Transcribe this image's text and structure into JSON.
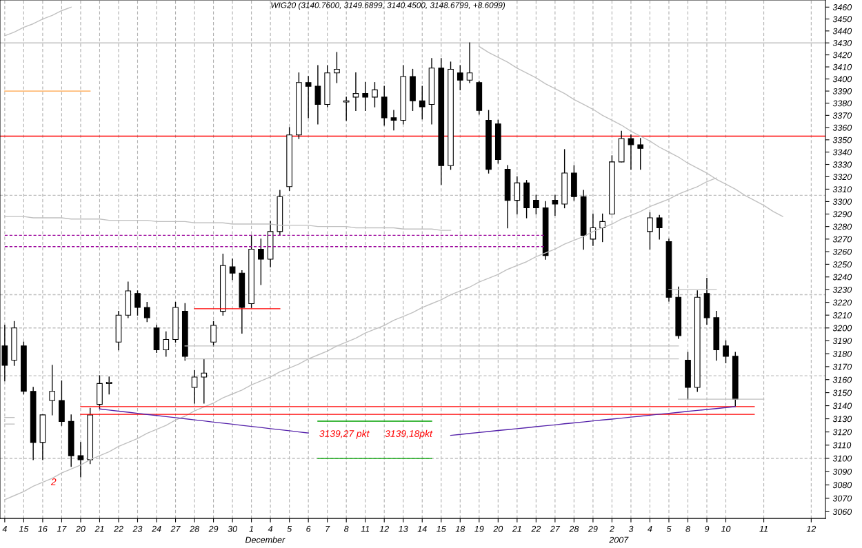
{
  "chart_data": {
    "type": "candlestick",
    "title": "WIG20 (3140.7600, 3149.6899, 3140.4500, 3148.6799, +8.6099)",
    "categories": [
      "4",
      null,
      "15",
      null,
      "16",
      null,
      "17",
      null,
      "20",
      null,
      "21",
      null,
      "22",
      null,
      "23",
      null,
      "24",
      null,
      "27",
      null,
      "28",
      null,
      "29",
      null,
      "30",
      null,
      "1",
      null,
      "4",
      null,
      "5",
      null,
      "6",
      null,
      "7",
      null,
      "8",
      null,
      "11",
      null,
      "12",
      null,
      "13",
      null,
      "14",
      null,
      "15",
      null,
      "18",
      null,
      "19",
      null,
      "20",
      null,
      "21",
      null,
      "22",
      null,
      "27",
      null,
      "28",
      null,
      "29",
      null,
      "2",
      null,
      "3",
      null,
      "4",
      null,
      "5",
      null,
      "8",
      null,
      "9",
      null,
      "10",
      null,
      null,
      null,
      "11",
      null,
      null,
      null,
      null,
      "12",
      null
    ],
    "ohlc": [
      [
        3186,
        3202,
        3159,
        3171
      ],
      [
        3175,
        3205,
        3171,
        3200
      ],
      [
        3186,
        3189,
        3149,
        3151
      ],
      [
        3151,
        3154,
        3099,
        3112
      ],
      [
        3112,
        3133,
        3099,
        3133
      ],
      [
        3144,
        3171,
        3133,
        3151
      ],
      [
        3144,
        3159,
        3125,
        3128
      ],
      [
        3128,
        3133,
        3094,
        3102
      ],
      [
        3102,
        3112,
        3086,
        3099
      ],
      [
        3099,
        3138,
        3096,
        3133
      ],
      [
        3141,
        3163,
        3138,
        3157
      ],
      [
        3157,
        3162,
        3149,
        3158
      ],
      [
        3189,
        3213,
        3183,
        3210
      ],
      [
        3210,
        3236,
        3208,
        3229
      ],
      [
        3227,
        3229,
        3210,
        3216
      ],
      [
        3216,
        3220,
        3205,
        3208
      ],
      [
        3200,
        3202,
        3181,
        3183
      ],
      [
        3183,
        3197,
        3178,
        3191
      ],
      [
        3191,
        3220,
        3189,
        3216
      ],
      [
        3213,
        3219,
        3175,
        3178
      ],
      [
        3154,
        3167,
        3142,
        3162
      ],
      [
        3162,
        3176,
        3142,
        3165
      ],
      [
        3189,
        3205,
        3186,
        3202
      ],
      [
        3213,
        3258,
        3210,
        3249
      ],
      [
        3248,
        3254,
        3238,
        3243
      ],
      [
        3243,
        3245,
        3196,
        3216
      ],
      [
        3219,
        3273,
        3216,
        3262
      ],
      [
        3262,
        3270,
        3234,
        3254
      ],
      [
        3254,
        3284,
        3248,
        3276
      ],
      [
        3276,
        3309,
        3273,
        3304
      ],
      [
        3312,
        3360,
        3309,
        3354
      ],
      [
        3354,
        3405,
        3351,
        3397
      ],
      [
        3397,
        3402,
        3368,
        3394
      ],
      [
        3394,
        3411,
        3363,
        3379
      ],
      [
        3379,
        3411,
        3377,
        3405
      ],
      [
        3405,
        3422,
        3397,
        3408
      ],
      [
        3381,
        3385,
        3366,
        3382
      ],
      [
        3385,
        3405,
        3374,
        3388
      ],
      [
        3388,
        3397,
        3374,
        3385
      ],
      [
        3385,
        3397,
        3377,
        3391
      ],
      [
        3385,
        3394,
        3362,
        3368
      ],
      [
        3368,
        3374,
        3358,
        3366
      ],
      [
        3366,
        3411,
        3363,
        3402
      ],
      [
        3402,
        3408,
        3374,
        3382
      ],
      [
        3382,
        3394,
        3367,
        3377
      ],
      [
        3379,
        3417,
        3363,
        3409
      ],
      [
        3409,
        3417,
        3314,
        3329
      ],
      [
        3329,
        3414,
        3326,
        3408
      ],
      [
        3405,
        3411,
        3391,
        3399
      ],
      [
        3399,
        3430,
        3397,
        3405
      ],
      [
        3397,
        3398,
        3371,
        3374
      ],
      [
        3366,
        3374,
        3323,
        3326
      ],
      [
        3363,
        3366,
        3331,
        3334
      ],
      [
        3326,
        3329,
        3279,
        3301
      ],
      [
        3301,
        3320,
        3290,
        3315
      ],
      [
        3315,
        3317,
        3287,
        3295
      ],
      [
        3301,
        3305,
        3290,
        3295
      ],
      [
        3295,
        3300,
        3254,
        3257
      ],
      [
        3301,
        3305,
        3289,
        3298
      ],
      [
        3298,
        3342,
        3295,
        3323
      ],
      [
        3323,
        3329,
        3301,
        3304
      ],
      [
        3304,
        3309,
        3262,
        3273
      ],
      [
        3270,
        3290,
        3265,
        3279
      ],
      [
        3279,
        3290,
        3268,
        3284
      ],
      [
        3290,
        3337,
        3290,
        3332
      ],
      [
        3332,
        3357,
        3332,
        3351
      ],
      [
        3351,
        3354,
        3326,
        3346
      ],
      [
        3346,
        3351,
        3326,
        3343
      ],
      [
        3276,
        3291,
        3262,
        3287
      ],
      [
        3287,
        3289,
        3270,
        3279
      ],
      [
        3268,
        3270,
        3221,
        3224
      ],
      [
        3224,
        3232,
        3192,
        3194
      ],
      [
        3175,
        3181,
        3145,
        3154
      ],
      [
        3154,
        3229,
        3151,
        3224
      ],
      [
        3227,
        3239,
        3203,
        3208
      ],
      [
        3208,
        3213,
        3175,
        3183
      ],
      [
        3186,
        3190,
        3173,
        3178
      ],
      [
        3178,
        3181,
        3140,
        3145
      ],
      null,
      null,
      null,
      null,
      null,
      null,
      null,
      null,
      null
    ],
    "series": [
      {
        "type": "line",
        "color": "#c0c0c0",
        "values": [
          3436,
          3439,
          3443,
          3446,
          3450,
          3453,
          3457,
          3460,
          null,
          null,
          null,
          null,
          null,
          null,
          null,
          null,
          null,
          null,
          null,
          null,
          null,
          null,
          null,
          null,
          null,
          null,
          null,
          null,
          null,
          null,
          null,
          null,
          null,
          null,
          null,
          null,
          null,
          null,
          null,
          null,
          null,
          null,
          null,
          null,
          null,
          null,
          null,
          null,
          null,
          null,
          null,
          null,
          null,
          null,
          null,
          null,
          null,
          null,
          null,
          null,
          null,
          null,
          null,
          null,
          null,
          null,
          null,
          null,
          null,
          null,
          null,
          null,
          null,
          null,
          null,
          null,
          null,
          null,
          null,
          null,
          null,
          null,
          null,
          null,
          null,
          null,
          null
        ]
      },
      {
        "type": "line",
        "color": "#ffa040",
        "values": [
          3390,
          3390,
          3390,
          3390,
          3390,
          3390,
          3390,
          3390,
          3390,
          3390,
          null,
          null,
          null,
          null,
          null,
          null,
          null,
          null,
          null,
          null,
          null,
          null,
          null,
          null,
          null,
          null,
          null,
          null,
          null,
          null,
          null,
          null,
          null,
          null,
          null,
          null,
          null,
          null,
          null,
          null,
          null,
          null,
          null,
          null,
          null,
          null,
          null,
          null,
          null,
          null,
          null,
          null,
          null,
          null,
          null,
          null,
          null,
          null,
          null,
          null,
          null,
          null,
          null,
          null,
          null,
          null,
          null,
          null,
          null,
          null,
          null,
          null,
          null,
          null,
          null,
          null,
          null,
          null,
          null,
          null,
          null,
          null,
          null,
          null,
          null,
          null,
          null
        ]
      },
      {
        "type": "line",
        "color": "#c0c0c0",
        "values": [
          3288,
          3288,
          3288,
          3287,
          3287,
          3287,
          3287,
          3286,
          3286,
          3286,
          3286,
          3285,
          3285,
          3285,
          3285,
          3285,
          3284,
          3284,
          3284,
          3284,
          3283,
          3283,
          3283,
          3283,
          3282,
          3282,
          3282,
          3282,
          3282,
          3281,
          3281,
          3281,
          3281,
          3280,
          3280,
          3280,
          3280,
          3279,
          3279,
          3279,
          3279,
          3279,
          3278,
          3278,
          3278,
          3278,
          3277,
          3277,
          null,
          null,
          null,
          null,
          null,
          null,
          null,
          null,
          null,
          null,
          null,
          null,
          null,
          null,
          null,
          null,
          null,
          null,
          null,
          null,
          null,
          null,
          null,
          null,
          null,
          null,
          null,
          null,
          null,
          null,
          null,
          null,
          null,
          null,
          null,
          null,
          null,
          null,
          null
        ]
      },
      {
        "type": "line",
        "color": "#990099",
        "line_style": "dashed",
        "values": [
          3273,
          3273,
          3273,
          3273,
          3273,
          3273,
          3273,
          3273,
          3273,
          3273,
          3273,
          3273,
          3273,
          3273,
          3273,
          3273,
          3273,
          3273,
          3273,
          3273,
          3273,
          3273,
          3273,
          3273,
          3273,
          3273,
          3273,
          3273,
          3273,
          3273,
          3273,
          3273,
          3273,
          3273,
          3273,
          3273,
          3273,
          3273,
          3273,
          3273,
          3273,
          3273,
          3273,
          3273,
          3273,
          3273,
          3273,
          3273,
          3273,
          3273,
          3273,
          3273,
          3273,
          3273,
          3273,
          3273,
          3273,
          3273,
          null,
          null,
          null,
          null,
          null,
          null,
          null,
          null,
          null,
          null,
          null,
          null,
          null,
          null,
          null,
          null,
          null,
          null,
          null,
          null,
          null,
          null,
          null,
          null,
          null,
          null,
          null,
          null,
          null
        ]
      },
      {
        "type": "line",
        "color": "#990099",
        "line_style": "dashed",
        "values": [
          3264,
          3264,
          3264,
          3264,
          3264,
          3264,
          3264,
          3264,
          3264,
          3264,
          3264,
          3264,
          3264,
          3264,
          3264,
          3264,
          3264,
          3264,
          3264,
          3264,
          3264,
          3264,
          3264,
          3264,
          3264,
          3264,
          3264,
          3264,
          3264,
          3264,
          3264,
          3264,
          3264,
          3264,
          3264,
          3264,
          3264,
          3264,
          3264,
          3264,
          3264,
          3264,
          3264,
          3264,
          3264,
          3264,
          3264,
          3264,
          3264,
          3264,
          3264,
          3264,
          3264,
          3264,
          3264,
          3264,
          3264,
          3264,
          null,
          null,
          null,
          null,
          null,
          null,
          null,
          null,
          null,
          null,
          null,
          null,
          null,
          null,
          null,
          null,
          null,
          null,
          null,
          null,
          null,
          null,
          null,
          null,
          null,
          null,
          null,
          null,
          null
        ]
      },
      {
        "type": "line",
        "color": "#c0c0c0",
        "values": [
          null,
          null,
          null,
          null,
          null,
          null,
          null,
          null,
          null,
          null,
          null,
          null,
          null,
          null,
          null,
          null,
          null,
          null,
          null,
          3186,
          3186,
          3186,
          3186,
          3186,
          3186,
          3186,
          3186,
          3186,
          3186,
          3186,
          3186,
          3186,
          3186,
          3186,
          3186,
          3186,
          3186,
          3186,
          3186,
          3186,
          3186,
          3186,
          3186,
          3186,
          3186,
          3186,
          3186,
          3186,
          3186,
          3186,
          3186,
          3186,
          3186,
          3186,
          3186,
          3186,
          3186,
          3186,
          3186,
          3186,
          3186,
          3186,
          3186,
          3186,
          3186,
          3186,
          3186,
          3186,
          3186,
          3186,
          3186,
          3186,
          null,
          null,
          null,
          null,
          null,
          null,
          null,
          null,
          null,
          null,
          null,
          null,
          null,
          null,
          null
        ]
      },
      {
        "type": "line",
        "color": "#c0c0c0",
        "values": [
          null,
          null,
          null,
          null,
          null,
          null,
          null,
          null,
          null,
          null,
          null,
          null,
          null,
          null,
          null,
          null,
          null,
          null,
          null,
          3176,
          3176,
          3176,
          3176,
          3176,
          3176,
          3176,
          3176,
          3176,
          3176,
          3176,
          3176,
          3176,
          3176,
          3176,
          3176,
          3176,
          3176,
          3176,
          3176,
          3176,
          3176,
          3176,
          3176,
          3176,
          3176,
          3176,
          3176,
          3176,
          3176,
          3176,
          3176,
          3176,
          3176,
          3176,
          3176,
          3176,
          3176,
          3176,
          3176,
          3176,
          3176,
          3176,
          3176,
          3176,
          3176,
          3176,
          3176,
          3176,
          3176,
          3176,
          3176,
          3176,
          null,
          null,
          null,
          null,
          null,
          null,
          null,
          null,
          null,
          null,
          null,
          null,
          null,
          null,
          null
        ]
      },
      {
        "type": "line",
        "color": "#c0c0c0",
        "values": [
          3131,
          3131,
          null,
          null,
          null,
          null,
          null,
          null,
          null,
          null,
          null,
          null,
          null,
          null,
          null,
          null,
          null,
          null,
          null,
          null,
          null,
          null,
          null,
          null,
          null,
          null,
          null,
          null,
          null,
          null,
          null,
          null,
          null,
          null,
          null,
          null,
          null,
          null,
          null,
          null,
          null,
          null,
          null,
          null,
          null,
          null,
          null,
          null,
          null,
          null,
          null,
          null,
          null,
          null,
          null,
          null,
          null,
          null,
          null,
          null,
          null,
          null,
          null,
          null,
          null,
          null,
          null,
          null,
          null,
          null,
          null,
          null,
          null,
          null,
          null,
          null,
          null,
          null,
          null,
          null,
          null,
          null,
          null,
          null,
          null,
          null,
          null
        ]
      },
      {
        "type": "line",
        "color": "#c0c0c0",
        "values": [
          3126,
          3126,
          null,
          null,
          null,
          null,
          null,
          null,
          null,
          null,
          null,
          null,
          null,
          null,
          null,
          null,
          null,
          null,
          null,
          null,
          null,
          null,
          null,
          null,
          null,
          null,
          null,
          null,
          null,
          null,
          null,
          null,
          null,
          null,
          null,
          null,
          null,
          null,
          null,
          null,
          null,
          null,
          null,
          null,
          null,
          null,
          null,
          null,
          null,
          null,
          null,
          null,
          null,
          null,
          null,
          null,
          null,
          null,
          null,
          null,
          null,
          null,
          null,
          null,
          null,
          null,
          null,
          null,
          null,
          null,
          null,
          null,
          null,
          null,
          null,
          null,
          null,
          null,
          null,
          null,
          null,
          null,
          null,
          null,
          null,
          null,
          null
        ]
      },
      {
        "type": "line",
        "color": "#ff0000",
        "values": [
          null,
          null,
          null,
          null,
          null,
          null,
          null,
          null,
          null,
          null,
          null,
          null,
          null,
          null,
          null,
          null,
          null,
          null,
          null,
          null,
          3215,
          3215,
          3215,
          3215,
          3215,
          3215,
          3215,
          3215,
          3215,
          3215,
          null,
          null,
          null,
          null,
          null,
          null,
          null,
          null,
          null,
          null,
          null,
          null,
          null,
          null,
          null,
          null,
          null,
          null,
          null,
          null,
          null,
          null,
          null,
          null,
          null,
          null,
          null,
          null,
          null,
          null,
          null,
          null,
          null,
          null,
          null,
          null,
          null,
          null,
          null,
          null,
          null,
          null,
          null,
          null,
          null,
          null,
          null,
          null,
          null,
          null,
          null,
          null,
          null,
          null,
          null,
          null,
          null
        ]
      },
      {
        "type": "line",
        "color": "#c0c0c0",
        "values": [
          null,
          null,
          null,
          null,
          null,
          null,
          null,
          null,
          null,
          null,
          null,
          null,
          null,
          null,
          null,
          null,
          null,
          null,
          null,
          null,
          null,
          null,
          null,
          null,
          null,
          null,
          null,
          null,
          null,
          null,
          null,
          null,
          null,
          null,
          null,
          null,
          null,
          null,
          null,
          null,
          null,
          null,
          null,
          null,
          null,
          null,
          null,
          null,
          null,
          null,
          null,
          null,
          null,
          null,
          null,
          null,
          null,
          null,
          null,
          null,
          null,
          null,
          null,
          null,
          null,
          null,
          null,
          null,
          null,
          null,
          3230,
          3230,
          3230,
          3230,
          3230,
          3230,
          null,
          null,
          null,
          null,
          null,
          null,
          null,
          null,
          null,
          null,
          null
        ]
      },
      {
        "type": "line",
        "color": "#c0c0c0",
        "values": [
          null,
          null,
          null,
          null,
          null,
          null,
          null,
          null,
          null,
          null,
          null,
          null,
          null,
          null,
          null,
          null,
          null,
          null,
          null,
          null,
          null,
          null,
          null,
          null,
          null,
          null,
          null,
          null,
          null,
          null,
          null,
          null,
          null,
          null,
          null,
          null,
          null,
          null,
          null,
          null,
          null,
          null,
          null,
          null,
          null,
          null,
          null,
          null,
          null,
          null,
          null,
          null,
          null,
          null,
          null,
          null,
          null,
          null,
          null,
          null,
          null,
          null,
          null,
          null,
          null,
          null,
          null,
          null,
          null,
          null,
          null,
          3145,
          3145,
          3145,
          3145,
          3145,
          3145,
          3145,
          3145,
          3145,
          3145,
          null,
          null,
          null,
          null,
          null,
          null
        ]
      },
      {
        "type": "line",
        "color": "#c0c0c0",
        "values": [
          3069,
          3072,
          3075,
          3079,
          3082,
          3085,
          3089,
          3092,
          3095,
          3099,
          3102,
          3105,
          3109,
          3112,
          3115,
          3119,
          3122,
          3125,
          3129,
          3132,
          3136,
          3139,
          3142,
          3146,
          3149,
          3152,
          3156,
          3159,
          3162,
          3166,
          3169,
          3172,
          3176,
          3179,
          3182,
          3186,
          3189,
          3192,
          3196,
          3199,
          3202,
          3206,
          3209,
          3212,
          3216,
          3219,
          3222,
          3226,
          3229,
          3232,
          3236,
          3239,
          3242,
          3246,
          3249,
          3252,
          3256,
          3259,
          3262,
          3266,
          3269,
          3272,
          3276,
          3279,
          3282,
          3286,
          3289,
          3292,
          3296,
          3299,
          3302,
          3306,
          3309,
          3312,
          3316,
          3319,
          null,
          null,
          null,
          null,
          null,
          null,
          null,
          null,
          null,
          null,
          null
        ]
      },
      {
        "type": "line",
        "color": "#c0c0c0",
        "values": [
          null,
          null,
          null,
          null,
          null,
          null,
          null,
          null,
          null,
          null,
          null,
          null,
          null,
          null,
          null,
          null,
          null,
          null,
          null,
          null,
          null,
          null,
          null,
          null,
          null,
          null,
          null,
          null,
          null,
          null,
          null,
          null,
          null,
          null,
          null,
          null,
          null,
          null,
          null,
          null,
          null,
          null,
          null,
          null,
          null,
          null,
          null,
          null,
          null,
          null,
          3427,
          3422,
          3418,
          3414,
          3409,
          3405,
          3401,
          3396,
          3392,
          3388,
          3383,
          3379,
          3375,
          3370,
          3366,
          3362,
          3357,
          3353,
          3349,
          3344,
          3340,
          3336,
          3331,
          3327,
          3323,
          3318,
          3314,
          3310,
          3305,
          3301,
          3297,
          3292,
          3288,
          null,
          null,
          null,
          null
        ]
      },
      {
        "type": "line",
        "color": "#ff0000",
        "values": [
          null,
          null,
          null,
          null,
          null,
          null,
          null,
          null,
          3139.3,
          3139.3,
          3139.3,
          3139.3,
          3139.3,
          3139.3,
          3139.3,
          3139.3,
          3139.3,
          3139.3,
          3139.3,
          3139.3,
          3139.3,
          3139.3,
          3139.3,
          3139.3,
          3139.3,
          3139.3,
          3139.3,
          3139.3,
          3139.3,
          3139.3,
          3139.3,
          3139.3,
          3139.3,
          3139.3,
          3139.3,
          3139.3,
          3139.3,
          3139.3,
          3139.3,
          3139.3,
          3139.3,
          3139.3,
          3139.3,
          3139.3,
          3139.3,
          3139.3,
          3139.3,
          3139.3,
          3139.3,
          3139.3,
          3139.3,
          3139.3,
          3139.3,
          3139.3,
          3139.3,
          3139.3,
          3139.3,
          3139.3,
          3139.3,
          3139.3,
          3139.3,
          3139.3,
          3139.3,
          3139.3,
          3139.3,
          3139.3,
          3139.3,
          3139.3,
          3139.3,
          3139.3,
          3139.3,
          3139.3,
          3139.3,
          3139.3,
          3139.3,
          3139.3,
          3139.3,
          3139.3,
          3139.3,
          3139.3,
          null,
          null,
          null,
          null,
          null,
          null,
          null
        ]
      },
      {
        "type": "line",
        "color": "#ff0000",
        "values": [
          null,
          null,
          null,
          null,
          null,
          null,
          null,
          null,
          3133.4,
          3133.4,
          3133.4,
          3133.4,
          3133.4,
          3133.4,
          3133.4,
          3133.4,
          3133.4,
          3133.4,
          3133.4,
          3133.4,
          3133.4,
          3133.4,
          3133.4,
          3133.4,
          3133.4,
          3133.4,
          3133.4,
          3133.4,
          3133.4,
          3133.4,
          3133.4,
          3133.4,
          3133.4,
          3133.4,
          3133.4,
          3133.4,
          3133.4,
          3133.4,
          3133.4,
          3133.4,
          3133.4,
          3133.4,
          3133.4,
          3133.4,
          3133.4,
          3133.4,
          3133.4,
          3133.4,
          3133.4,
          3133.4,
          3133.4,
          3133.4,
          3133.4,
          3133.4,
          3133.4,
          3133.4,
          3133.4,
          3133.4,
          3133.4,
          3133.4,
          3133.4,
          3133.4,
          3133.4,
          3133.4,
          3133.4,
          3133.4,
          3133.4,
          3133.4,
          3133.4,
          3133.4,
          3133.4,
          3133.4,
          3133.4,
          3133.4,
          3133.4,
          3133.4,
          3133.4,
          3133.4,
          3133.4,
          3133.4,
          null,
          null,
          null,
          null,
          null,
          null,
          null
        ]
      },
      {
        "type": "line",
        "color": "#5522aa",
        "values": [
          null,
          null,
          null,
          null,
          null,
          null,
          null,
          null,
          null,
          null,
          3137.5,
          3136.7,
          3135.8,
          3135.0,
          3134.2,
          3133.3,
          3132.5,
          3131.7,
          3130.9,
          3130.0,
          3129.2,
          3128.4,
          3127.5,
          3126.7,
          3125.9,
          3125.0,
          3124.2,
          3123.4,
          3122.5,
          3121.7,
          3120.9,
          3120.0,
          3119.2,
          null,
          null,
          null,
          null,
          null,
          null,
          null,
          null,
          null,
          null,
          null,
          null,
          null,
          null,
          null,
          null,
          null,
          null,
          null,
          null,
          null,
          null,
          null,
          null,
          null,
          null,
          null,
          null,
          null,
          null,
          null,
          null,
          null,
          null,
          null,
          null,
          null,
          null,
          null,
          null,
          null,
          null,
          null,
          null,
          null,
          null,
          null,
          null,
          null,
          null,
          null,
          null,
          null,
          null
        ]
      },
      {
        "type": "line",
        "color": "#5522aa",
        "values": [
          null,
          null,
          null,
          null,
          null,
          null,
          null,
          null,
          null,
          null,
          null,
          null,
          null,
          null,
          null,
          null,
          null,
          null,
          null,
          null,
          null,
          null,
          null,
          null,
          null,
          null,
          null,
          null,
          null,
          null,
          null,
          null,
          null,
          null,
          null,
          null,
          null,
          null,
          null,
          null,
          null,
          null,
          null,
          null,
          null,
          null,
          null,
          3117.4,
          3118.1,
          3118.9,
          3119.6,
          3120.3,
          3121.1,
          3121.8,
          3122.5,
          3123.2,
          3124.0,
          3124.7,
          3125.4,
          3126.2,
          3126.9,
          3127.6,
          3128.4,
          3129.1,
          3129.8,
          3130.5,
          3131.3,
          3132.0,
          3132.7,
          3133.5,
          3134.2,
          3134.9,
          3135.7,
          3136.4,
          3137.1,
          3137.8,
          3138.6,
          3139.3,
          null,
          null,
          null,
          null,
          null,
          null,
          null,
          null,
          null
        ]
      },
      {
        "type": "line",
        "color": "#00a000",
        "values": [
          null,
          null,
          null,
          null,
          null,
          null,
          null,
          null,
          null,
          null,
          null,
          null,
          null,
          null,
          null,
          null,
          null,
          null,
          null,
          null,
          null,
          null,
          null,
          null,
          null,
          null,
          null,
          null,
          null,
          null,
          null,
          null,
          null,
          3128.2,
          3128.2,
          3128.2,
          3128.2,
          3128.2,
          3128.2,
          3128.2,
          3128.2,
          3128.2,
          3128.2,
          3128.2,
          3128.2,
          3128.2,
          null,
          null,
          null,
          null,
          null,
          null,
          null,
          null,
          null,
          null,
          null,
          null,
          null,
          null,
          null,
          null,
          null,
          null,
          null,
          null,
          null,
          null,
          null,
          null,
          null,
          null,
          null,
          null,
          null,
          null,
          null,
          null,
          null,
          null,
          null,
          null,
          null,
          null,
          null,
          null,
          null
        ]
      },
      {
        "type": "line",
        "color": "#00a000",
        "values": [
          null,
          null,
          null,
          null,
          null,
          null,
          null,
          null,
          null,
          null,
          null,
          null,
          null,
          null,
          null,
          null,
          null,
          null,
          null,
          null,
          null,
          null,
          null,
          null,
          null,
          null,
          null,
          null,
          null,
          null,
          null,
          null,
          null,
          3099.9,
          3099.9,
          3099.9,
          3099.9,
          3099.9,
          3099.9,
          3099.9,
          3099.9,
          3099.9,
          3099.9,
          3099.9,
          3099.9,
          3099.9,
          null,
          null,
          null,
          null,
          null,
          null,
          null,
          null,
          null,
          null,
          null,
          null,
          null,
          null,
          null,
          null,
          null,
          null,
          null,
          null,
          null,
          null,
          null,
          null,
          null,
          null,
          null,
          null,
          null,
          null,
          null,
          null,
          null,
          null,
          null,
          null,
          null,
          null,
          null,
          null,
          null
        ]
      }
    ],
    "ref_lines": [
      {
        "axis": "y",
        "value": 3430,
        "color": "#c0c0c0"
      },
      {
        "axis": "y",
        "value": 3353,
        "color": "#ff0000"
      },
      {
        "axis": "y",
        "value": 3305,
        "color": "#c0c0c0",
        "line_style": "dashed"
      },
      {
        "axis": "y",
        "value": 3226,
        "color": "#c0c0c0",
        "line_style": "dashed"
      },
      {
        "axis": "y",
        "value": 3200,
        "color": "#c0c0c0",
        "line_style": "dashed"
      },
      {
        "axis": "y",
        "value": 3163,
        "color": "#c0c0c0",
        "line_style": "dashed"
      },
      {
        "axis": "y",
        "value": 3100,
        "color": "#c0c0c0",
        "line_style": "dashed"
      }
    ],
    "annotations": [
      "3139,27 pkt",
      "3139,18pkt",
      "2",
      "December",
      "2007"
    ],
    "log": "y",
    "ylim": [
      3055,
      3466
    ],
    "yticks": [
      3060,
      3070,
      3080,
      3090,
      3100,
      3110,
      3120,
      3130,
      3140,
      3150,
      3160,
      3170,
      3180,
      3190,
      3200,
      3210,
      3220,
      3230,
      3240,
      3250,
      3260,
      3270,
      3280,
      3290,
      3300,
      3310,
      3320,
      3330,
      3340,
      3350,
      3360,
      3370,
      3380,
      3390,
      3400,
      3410,
      3420,
      3430,
      3440,
      3450,
      3460
    ],
    "grid": "x"
  }
}
